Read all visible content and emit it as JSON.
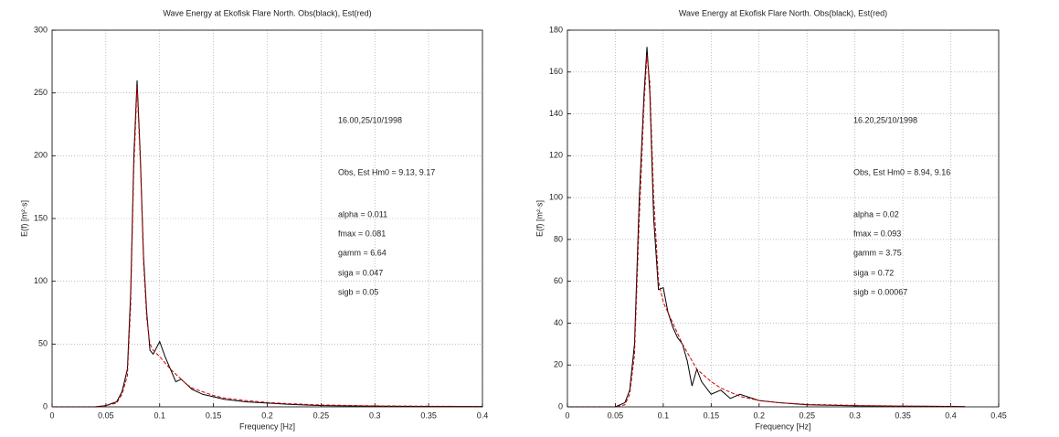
{
  "chart_data": [
    {
      "type": "line",
      "title": "Wave Energy at Ekofisk Flare North. Obs(black), Est(red)",
      "x_label": "Frequency [Hz]",
      "y_label": "E(f) [m²·s]",
      "x": [
        0,
        0.04,
        0.05,
        0.06,
        0.065,
        0.07,
        0.073,
        0.076,
        0.079,
        0.082,
        0.085,
        0.088,
        0.091,
        0.094,
        0.1,
        0.105,
        0.11,
        0.115,
        0.12,
        0.125,
        0.13,
        0.14,
        0.15,
        0.16,
        0.18,
        0.2,
        0.22,
        0.25,
        0.3,
        0.35,
        0.4
      ],
      "series": [
        {
          "name": "Obs",
          "color": "#000000",
          "values": [
            0,
            0,
            1,
            4,
            12,
            30,
            90,
            200,
            260,
            200,
            120,
            75,
            45,
            42,
            52,
            40,
            30,
            20,
            22,
            18,
            14,
            10,
            8,
            6,
            4,
            3,
            2,
            1,
            0.5,
            0.3,
            0.2
          ]
        },
        {
          "name": "Est",
          "color": "#cc0000",
          "dashed": true,
          "values": [
            0,
            0,
            1,
            3,
            10,
            25,
            80,
            190,
            255,
            195,
            115,
            70,
            50,
            45,
            40,
            35,
            30,
            26,
            22,
            18,
            15,
            12,
            9,
            7,
            5,
            3.5,
            2.5,
            1.5,
            0.8,
            0.5,
            0.3
          ]
        }
      ],
      "xlim": [
        0,
        0.4
      ],
      "ylim": [
        0,
        300
      ],
      "xticks": [
        0,
        0.05,
        0.1,
        0.15,
        0.2,
        0.25,
        0.3,
        0.35,
        0.4
      ],
      "yticks": [
        0,
        50,
        100,
        150,
        200,
        250,
        300
      ],
      "grid": true,
      "annotations": [
        "16.00,25/10/1998",
        "Obs, Est Hm0 = 9.13, 9.17",
        "alpha = 0.011",
        "fmax  = 0.081",
        "gamm  = 6.64",
        "siga  = 0.047",
        "sigb  = 0.05"
      ]
    },
    {
      "type": "line",
      "title": "Wave Energy at Ekofisk Flare North. Obs(black), Est(red)",
      "x_label": "Frequency [Hz]",
      "y_label": "E(f) [m²·s]",
      "x": [
        0,
        0.05,
        0.06,
        0.065,
        0.07,
        0.075,
        0.08,
        0.083,
        0.086,
        0.09,
        0.095,
        0.1,
        0.105,
        0.11,
        0.115,
        0.12,
        0.125,
        0.13,
        0.135,
        0.14,
        0.15,
        0.16,
        0.17,
        0.18,
        0.2,
        0.22,
        0.25,
        0.3,
        0.35,
        0.4,
        0.415
      ],
      "series": [
        {
          "name": "Obs",
          "color": "#000000",
          "values": [
            0,
            0,
            2,
            8,
            30,
            100,
            150,
            172,
            150,
            90,
            56,
            57,
            45,
            38,
            33,
            30,
            22,
            10,
            18,
            12,
            6,
            8,
            4,
            6,
            3,
            2,
            1,
            0.5,
            0.3,
            0.2,
            0.1
          ]
        },
        {
          "name": "Est",
          "color": "#cc0000",
          "dashed": true,
          "values": [
            0,
            0,
            1,
            6,
            25,
            90,
            145,
            168,
            155,
            100,
            60,
            50,
            45,
            40,
            35,
            30,
            26,
            22,
            18,
            16,
            12,
            9,
            7,
            5,
            3,
            2,
            1.2,
            0.7,
            0.4,
            0.2,
            0.1
          ]
        }
      ],
      "xlim": [
        0,
        0.45
      ],
      "ylim": [
        0,
        180
      ],
      "xticks": [
        0,
        0.05,
        0.1,
        0.15,
        0.2,
        0.25,
        0.3,
        0.35,
        0.4,
        0.45
      ],
      "yticks": [
        0,
        20,
        40,
        60,
        80,
        100,
        120,
        140,
        160,
        180
      ],
      "grid": true,
      "annotations": [
        "16.20,25/10/1998",
        "Obs, Est Hm0 = 8.94, 9.16",
        "alpha = 0.02",
        "fmax  = 0.093",
        "gamm  = 3.75",
        "siga  = 0.72",
        "sigb  = 0.00067"
      ]
    }
  ]
}
